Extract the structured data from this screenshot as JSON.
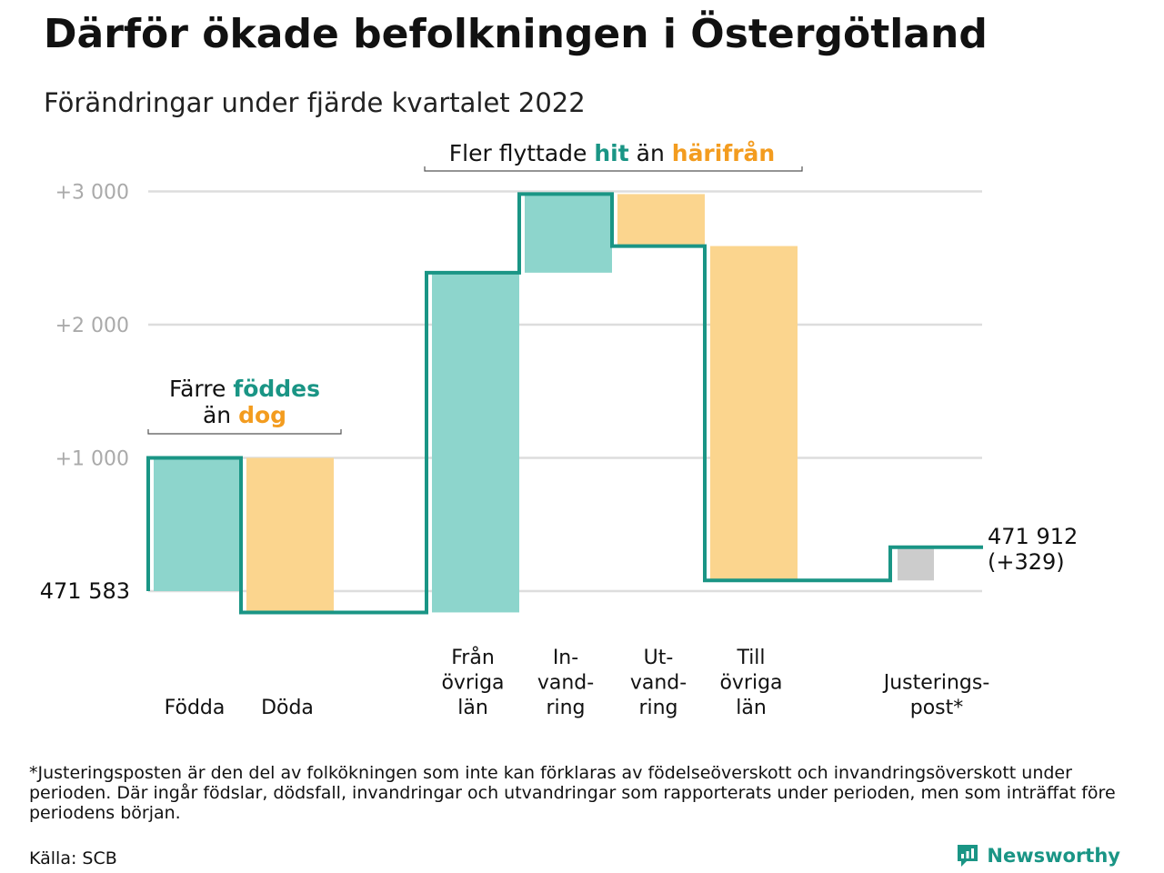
{
  "title": "Därför ökade befolkningen i Östergötland",
  "subtitle": "Förändringar under fjärde kvartalet 2022",
  "colors": {
    "increase": "#8dd5cc",
    "decrease": "#fbd58e",
    "adjustment": "#cccccc",
    "line": "#1a9585",
    "hit": "#1a9585",
    "away": "#f39c1f",
    "grid": "#dddddd",
    "tick": "#aaaaaa"
  },
  "chart_data": {
    "type": "waterfall",
    "start_value": 471583,
    "start_label": "471 583",
    "end_label_lines": [
      "471 912",
      "(+329)"
    ],
    "y_ticks": [
      {
        "value": 1000,
        "label": "+1 000"
      },
      {
        "value": 2000,
        "label": "+2 000"
      },
      {
        "value": 3000,
        "label": "+3 000"
      }
    ],
    "ylim": [
      -300,
      3150
    ],
    "steps": [
      {
        "label_lines": [
          "Födda"
        ],
        "change": 1000,
        "kind": "increase"
      },
      {
        "label_lines": [
          "Döda"
        ],
        "change": -1160,
        "kind": "decrease"
      },
      {
        "label_lines": [],
        "change": 0,
        "kind": "gap"
      },
      {
        "label_lines": [
          "Från",
          "övriga",
          "län"
        ],
        "change": 2550,
        "kind": "increase"
      },
      {
        "label_lines": [
          "In-",
          "vand-",
          "ring"
        ],
        "change": 590,
        "kind": "increase"
      },
      {
        "label_lines": [
          "Ut-",
          "vand-",
          "ring"
        ],
        "change": -390,
        "kind": "decrease"
      },
      {
        "label_lines": [
          "Till",
          "övriga",
          "län"
        ],
        "change": -2510,
        "kind": "decrease"
      },
      {
        "label_lines": [],
        "change": 0,
        "kind": "gap"
      },
      {
        "label_lines": [
          "Justerings-",
          "post*"
        ],
        "change": 249,
        "kind": "adjustment"
      }
    ],
    "annotations": [
      {
        "lines": [
          [
            {
              "text": "Färre ",
              "color": "text"
            },
            {
              "text": "föddes",
              "color": "hit"
            }
          ],
          [
            {
              "text": "än ",
              "color": "text"
            },
            {
              "text": "dog",
              "color": "away"
            }
          ]
        ]
      },
      {
        "lines": [
          [
            {
              "text": "Fler flyttade ",
              "color": "text"
            },
            {
              "text": "hit",
              "color": "hit"
            },
            {
              "text": " än ",
              "color": "text"
            },
            {
              "text": "härifrån",
              "color": "away"
            }
          ]
        ]
      }
    ]
  },
  "footnote": "*Justeringsposten är den del av folkökningen som inte kan förklaras av födelseöverskott och invandringsöverskott under perioden. Där ingår födslar, dödsfall, invandringar och utvandringar som rapporterats under perioden, men som inträffat före periodens början.",
  "source": "Källa: SCB",
  "brand": "Newsworthy"
}
